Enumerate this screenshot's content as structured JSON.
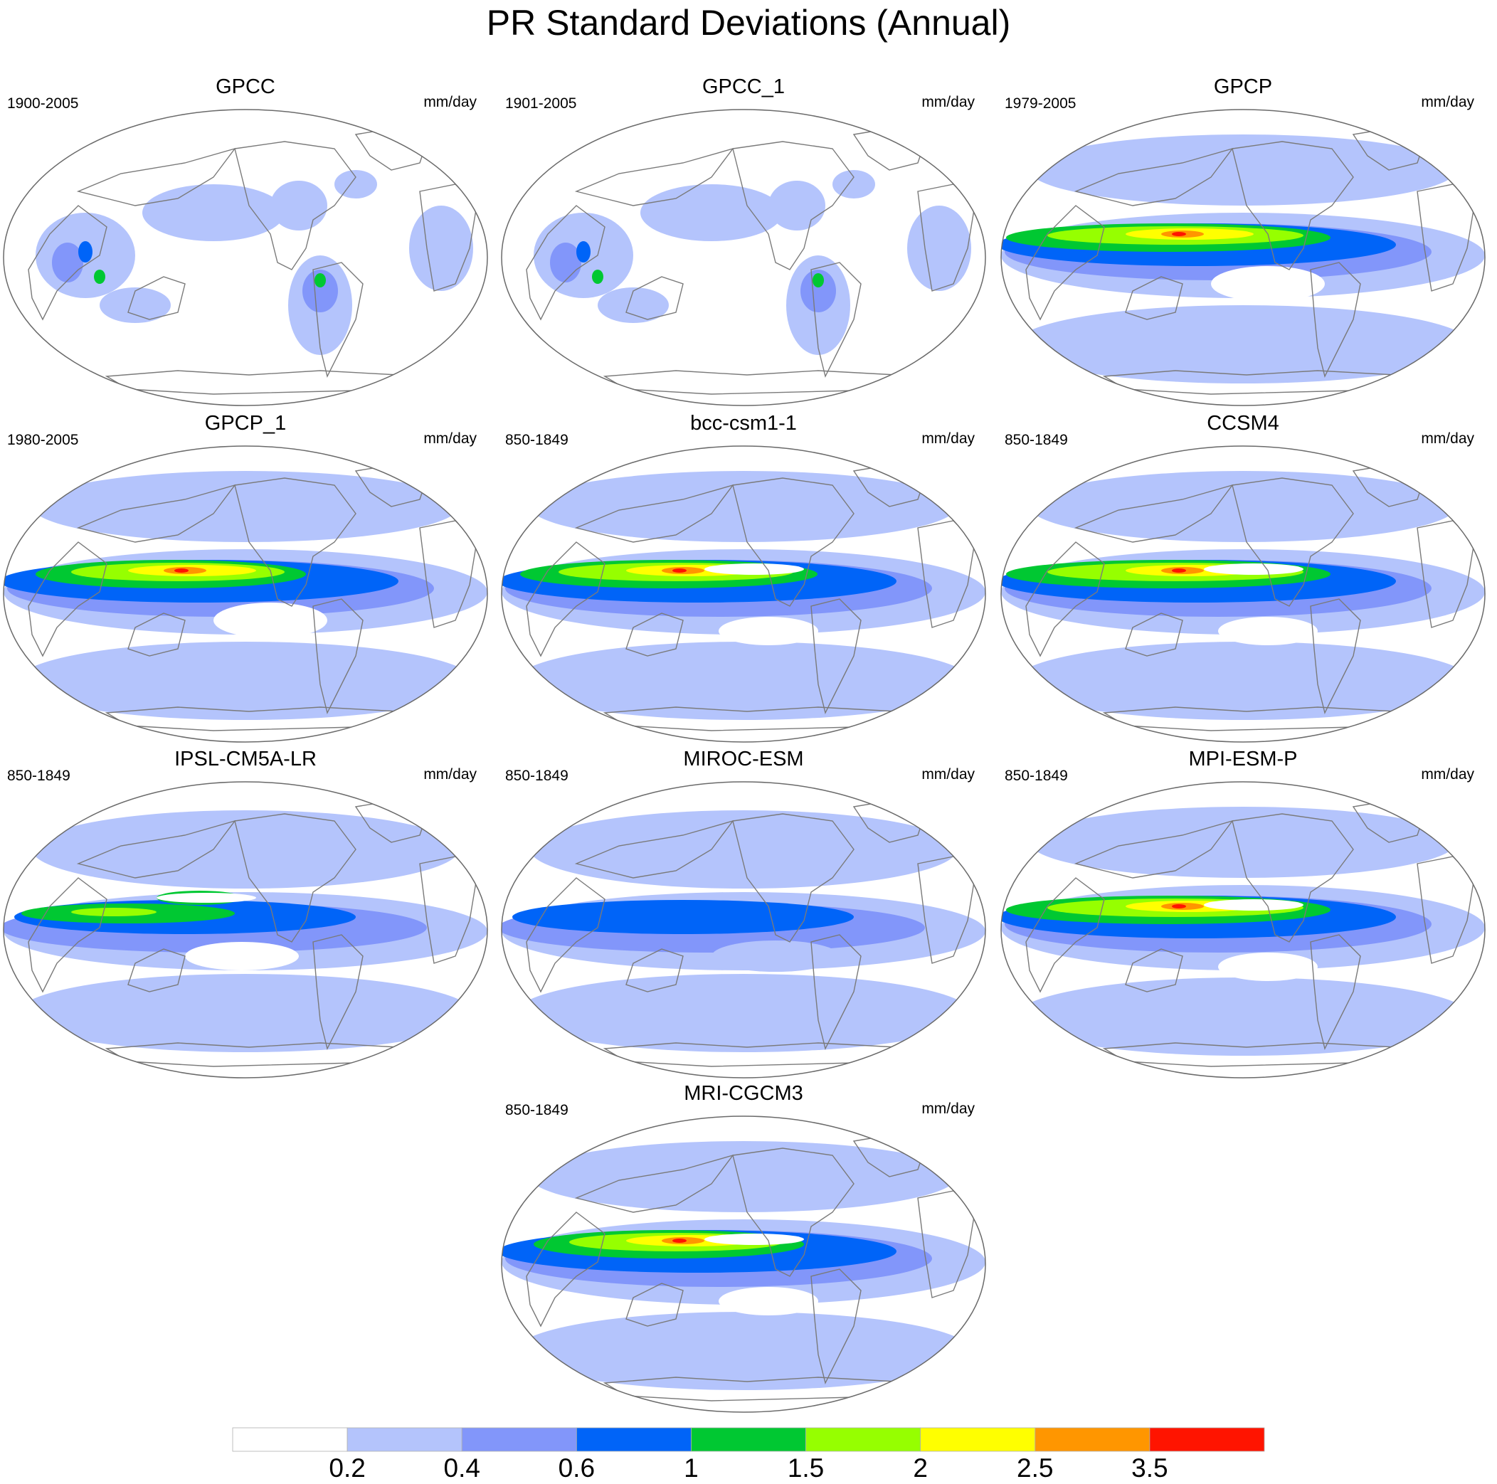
{
  "title": "PR Standard Deviations (Annual)",
  "units": "mm/day",
  "colors": {
    "levels": [
      "#ffffff",
      "#b4c4fc",
      "#8296fa",
      "#0064f8",
      "#00c832",
      "#96ff00",
      "#ffff00",
      "#ff9600",
      "#ff1400"
    ],
    "land_outline": "#7a7a7a",
    "frame": "#6a6a6a"
  },
  "panels": [
    {
      "name": "GPCC",
      "period": "1900-2005"
    },
    {
      "name": "GPCC_1",
      "period": "1901-2005"
    },
    {
      "name": "GPCP",
      "period": "1979-2005"
    },
    {
      "name": "GPCP_1",
      "period": "1980-2005"
    },
    {
      "name": "bcc-csm1-1",
      "period": "850-1849"
    },
    {
      "name": "CCSM4",
      "period": "850-1849"
    },
    {
      "name": "IPSL-CM5A-LR",
      "period": "850-1849"
    },
    {
      "name": "MIROC-ESM",
      "period": "850-1849"
    },
    {
      "name": "MPI-ESM-P",
      "period": "850-1849"
    },
    {
      "name": "MRI-CGCM3",
      "period": "850-1849"
    }
  ],
  "chart_data": {
    "type": "heatmap",
    "projection": "Robinson (Pacific-centered)",
    "legend_placement": "bottom",
    "colorbar": {
      "tick_labels": [
        "0.2",
        "0.4",
        "0.6",
        "1",
        "1.5",
        "2",
        "2.5",
        "3.5"
      ],
      "bin_count": 9
    }
  }
}
